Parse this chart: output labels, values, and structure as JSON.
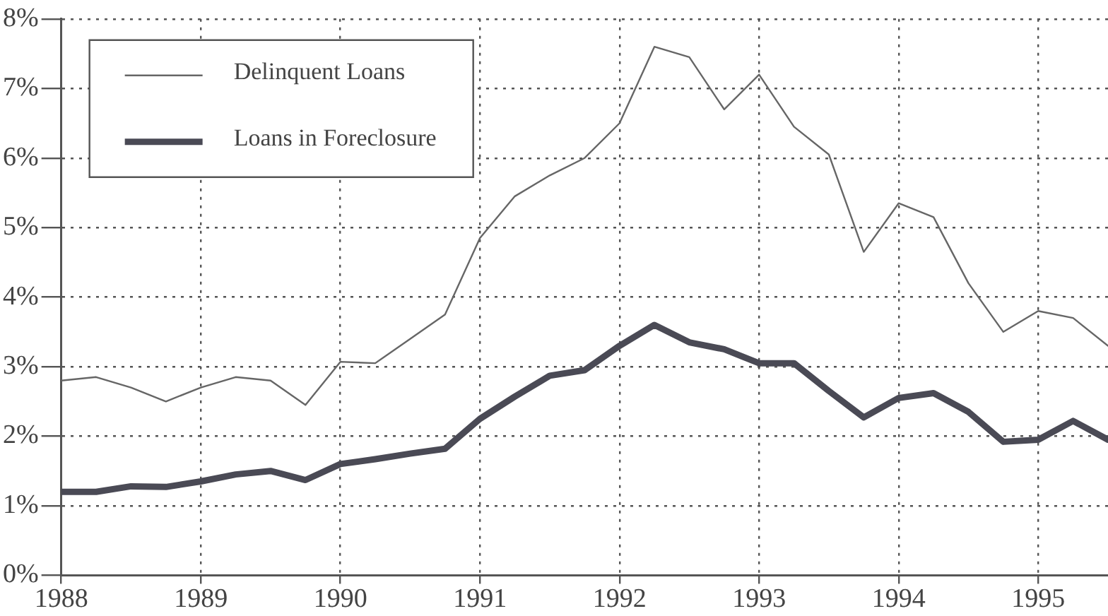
{
  "chart_data": {
    "type": "line",
    "x": [
      1988,
      1988.25,
      1988.5,
      1988.75,
      1989,
      1989.25,
      1989.5,
      1989.75,
      1990,
      1990.25,
      1990.5,
      1990.75,
      1991,
      1991.25,
      1991.5,
      1991.75,
      1992,
      1992.25,
      1992.5,
      1992.75,
      1993,
      1993.25,
      1993.5,
      1993.75,
      1994,
      1994.25,
      1994.5,
      1994.75,
      1995,
      1995.25,
      1995.5
    ],
    "series": [
      {
        "name": "Delinquent Loans",
        "color": "#666666",
        "values": [
          2.8,
          2.85,
          2.7,
          2.5,
          2.7,
          2.85,
          2.8,
          2.45,
          3.07,
          3.05,
          3.4,
          3.75,
          4.85,
          5.45,
          5.75,
          6.0,
          6.5,
          7.6,
          7.45,
          6.7,
          7.2,
          6.45,
          6.05,
          4.65,
          5.35,
          5.15,
          4.2,
          3.5,
          3.8,
          3.7,
          3.3
        ]
      },
      {
        "name": "Loans in Foreclosure",
        "color": "#4a4a55",
        "values": [
          1.2,
          1.2,
          1.28,
          1.27,
          1.35,
          1.45,
          1.5,
          1.37,
          1.6,
          1.67,
          1.75,
          1.82,
          2.25,
          2.57,
          2.87,
          2.95,
          3.3,
          3.6,
          3.35,
          3.25,
          3.05,
          3.05,
          2.65,
          2.27,
          2.55,
          2.62,
          2.35,
          1.92,
          1.95,
          2.22,
          1.95
        ]
      }
    ],
    "xlim": [
      1988,
      1995.5
    ],
    "xticks": [
      1988,
      1989,
      1990,
      1991,
      1992,
      1993,
      1994,
      1995
    ],
    "ylim": [
      0,
      8
    ],
    "yticks": [
      {
        "value": 0,
        "label": "0%"
      },
      {
        "value": 1,
        "label": "1%"
      },
      {
        "value": 2,
        "label": "2%"
      },
      {
        "value": 3,
        "label": "3%"
      },
      {
        "value": 4,
        "label": "4%"
      },
      {
        "value": 5,
        "label": "5%"
      },
      {
        "value": 6,
        "label": "6%"
      },
      {
        "value": 7,
        "label": "7%"
      },
      {
        "value": 8,
        "label": "8%"
      }
    ],
    "grid": true,
    "legend": "top left",
    "marker": "none",
    "line_style": "solid"
  }
}
